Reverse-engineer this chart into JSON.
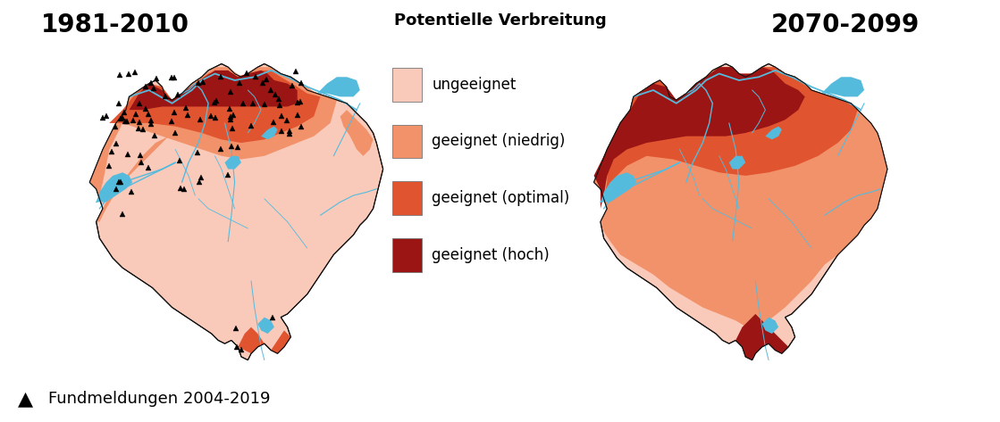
{
  "title_left": "1981-2010",
  "title_right": "2070-2099",
  "legend_title": "Potentielle Verbreitung",
  "legend_items": [
    {
      "label": "ungeeignet",
      "color": "#F9C9BA"
    },
    {
      "label": "geeignet (niedrig)",
      "color": "#F2926A"
    },
    {
      "label": "geeignet (optimal)",
      "color": "#E05530"
    },
    {
      "label": "geeignet (hoch)",
      "color": "#9B1515"
    }
  ],
  "footer_label": "Fundmeldungen 2004-2019",
  "background_color": "#FFFFFF",
  "title_fontsize": 20,
  "legend_fontsize": 12,
  "footer_fontsize": 13,
  "river_color": "#55BBDD",
  "lake_color": "#55BBDD",
  "border_color": "#111111"
}
